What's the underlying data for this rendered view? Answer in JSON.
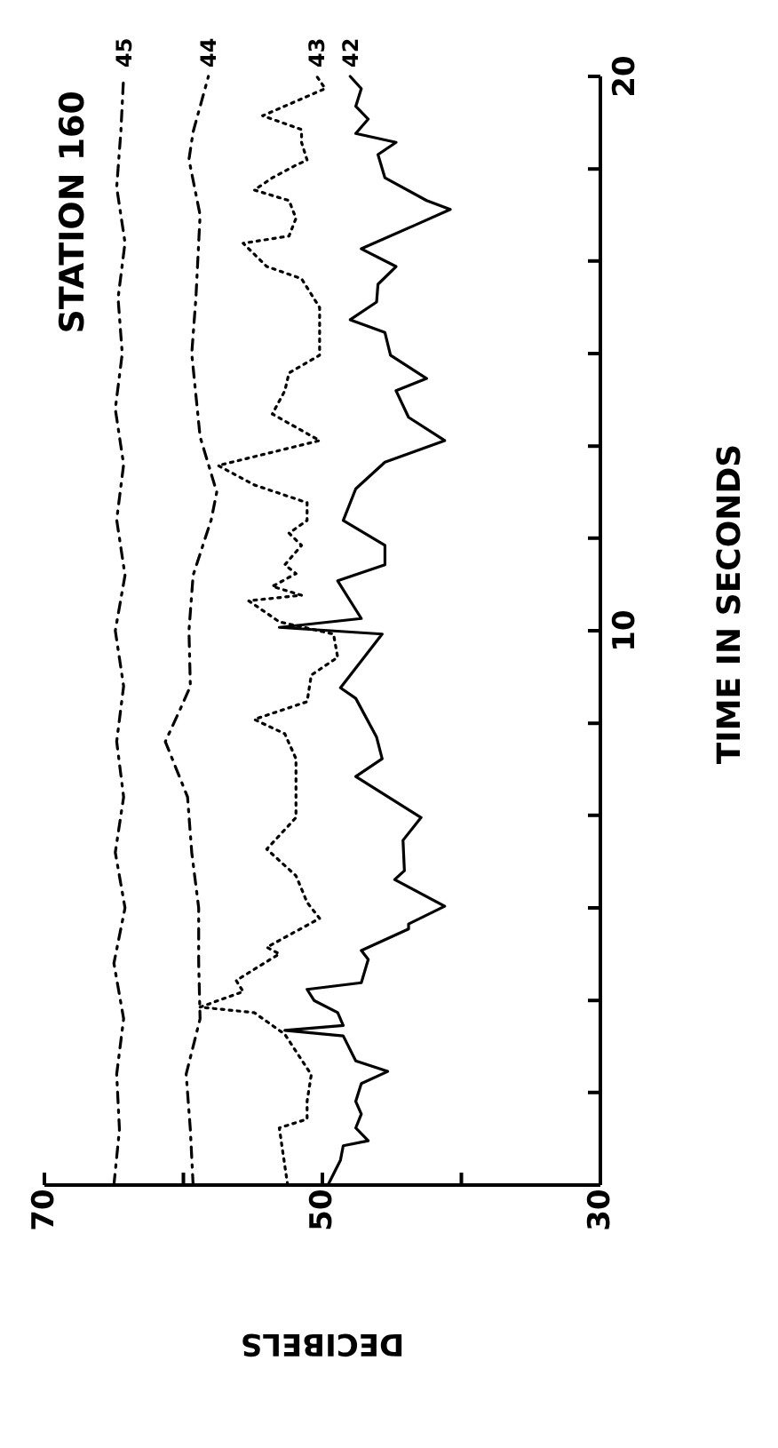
{
  "chart_data": {
    "type": "line",
    "title": "STATION 160",
    "xlabel": "DECIBELS",
    "ylabel": "TIME IN SECONDS",
    "xlim": [
      70,
      30
    ],
    "xticks": [
      70,
      {
        "value": 60,
        "label": null
      },
      50,
      {
        "value": 40,
        "label": null
      },
      30
    ],
    "ylim": [
      0,
      20
    ],
    "yticks": [
      {
        "value": 1.67,
        "label": null
      },
      {
        "value": 3.33,
        "label": null
      },
      {
        "value": 5,
        "label": null
      },
      {
        "value": 6.67,
        "label": null
      },
      {
        "value": 8.33,
        "label": null
      },
      10,
      {
        "value": 11.67,
        "label": null
      },
      {
        "value": 13.33,
        "label": null
      },
      {
        "value": 15,
        "label": null
      },
      {
        "value": 16.67,
        "label": null
      },
      {
        "value": 18.33,
        "label": null
      },
      20
    ],
    "grid": false,
    "legend": false,
    "marker": "none",
    "series": [
      {
        "name": "45",
        "color": "#000000",
        "line_style": "dashed",
        "values": [
          0,
          1,
          2,
          3,
          4,
          5,
          6,
          7,
          8,
          9,
          10,
          11,
          12,
          13,
          14,
          15,
          16,
          17,
          18,
          19,
          20
        ],
        "x": [
          65.0,
          64.6,
          64.8,
          64.3,
          65.0,
          64.2,
          64.9,
          64.3,
          64.8,
          64.3,
          64.9,
          64.2,
          64.8,
          64.3,
          64.9,
          64.4,
          64.7,
          64.2,
          64.8,
          64.5,
          64.3
        ]
      },
      {
        "name": "44",
        "color": "#000000",
        "line_style": "dashed",
        "values": [
          0,
          1,
          2,
          3,
          4,
          5,
          6,
          7,
          8,
          8.6,
          9,
          10,
          11,
          12,
          12.5,
          13.5,
          15,
          16,
          17.5,
          18.5,
          19,
          20
        ],
        "x": [
          59.3,
          59.5,
          59.8,
          58.8,
          58.9,
          58.9,
          59.4,
          59.7,
          61.3,
          60.2,
          59.5,
          59.6,
          59.3,
          58.0,
          57.6,
          58.8,
          59.4,
          59.1,
          58.8,
          59.6,
          59.3,
          58.2
        ]
      },
      {
        "name": "43",
        "color": "#000000",
        "line_style": "dotted",
        "values": [
          0,
          1.03,
          1.19,
          1.51,
          1.99,
          2.72,
          3.11,
          3.21,
          3.49,
          3.69,
          3.97,
          4.17,
          4.29,
          4.81,
          5.1,
          5.58,
          6.06,
          6.63,
          7.69,
          8.14,
          8.4,
          8.72,
          9.2,
          9.52,
          9.94,
          10.16,
          10.54,
          10.64,
          10.8,
          11.03,
          11.19,
          11.54,
          11.76,
          11.99,
          12.31,
          12.63,
          12.98,
          13.43,
          13.91,
          14.33,
          14.65,
          14.97,
          15.83,
          16.35,
          16.57,
          16.99,
          17.12,
          17.44,
          17.76,
          17.95,
          18.17,
          18.4,
          18.49,
          18.81,
          19.04,
          19.29,
          19.78,
          20
        ],
        "x": [
          52.5,
          53.1,
          51.1,
          51.1,
          50.8,
          52.7,
          54.9,
          58.8,
          55.7,
          56.2,
          54.4,
          53.1,
          54.0,
          50.2,
          51.1,
          51.9,
          54.0,
          51.9,
          51.9,
          52.7,
          54.9,
          51.1,
          50.8,
          48.9,
          49.2,
          53.1,
          55.3,
          51.5,
          53.6,
          51.9,
          52.7,
          51.5,
          52.4,
          51.1,
          51.1,
          54.9,
          57.5,
          50.2,
          53.6,
          52.7,
          52.4,
          50.2,
          50.2,
          51.5,
          54.0,
          55.7,
          52.4,
          51.9,
          52.4,
          54.9,
          53.6,
          51.9,
          51.1,
          51.5,
          51.5,
          54.3,
          49.8,
          50.4
        ]
      },
      {
        "name": "42",
        "color": "#000000",
        "line_style": "solid",
        "values": [
          0,
          0.45,
          0.71,
          0.8,
          1.03,
          1.28,
          1.51,
          1.83,
          2.05,
          2.24,
          2.69,
          2.79,
          2.88,
          3.11,
          3.33,
          3.53,
          3.65,
          4.07,
          4.23,
          4.62,
          4.71,
          5.03,
          5.51,
          5.67,
          6.22,
          6.63,
          7.37,
          7.69,
          8.08,
          8.78,
          8.97,
          9.94,
          10.06,
          10.22,
          10.9,
          11.19,
          11.54,
          11.99,
          12.56,
          13.04,
          13.43,
          13.85,
          14.33,
          14.55,
          14.97,
          15.38,
          15.61,
          15.93,
          16.25,
          16.57,
          16.89,
          17.31,
          17.6,
          17.76,
          18.17,
          18.59,
          18.81,
          18.97,
          19.23,
          19.46,
          19.78,
          20
        ],
        "x": [
          49.6,
          48.7,
          48.5,
          46.7,
          47.6,
          47.2,
          47.6,
          47.2,
          45.3,
          47.6,
          48.5,
          52.7,
          48.5,
          48.9,
          50.6,
          51.1,
          47.2,
          46.7,
          47.2,
          43.8,
          43.8,
          41.2,
          44.8,
          44.1,
          44.2,
          42.9,
          47.6,
          45.7,
          46.1,
          47.6,
          48.7,
          45.7,
          53.1,
          47.2,
          48.9,
          45.5,
          45.5,
          48.5,
          47.6,
          45.5,
          41.2,
          43.8,
          44.7,
          42.5,
          45.1,
          45.5,
          48.0,
          46.1,
          46.0,
          44.7,
          47.2,
          43.4,
          40.8,
          42.5,
          45.5,
          46.0,
          44.7,
          47.6,
          46.7,
          47.6,
          47.2,
          48.0
        ]
      }
    ]
  }
}
